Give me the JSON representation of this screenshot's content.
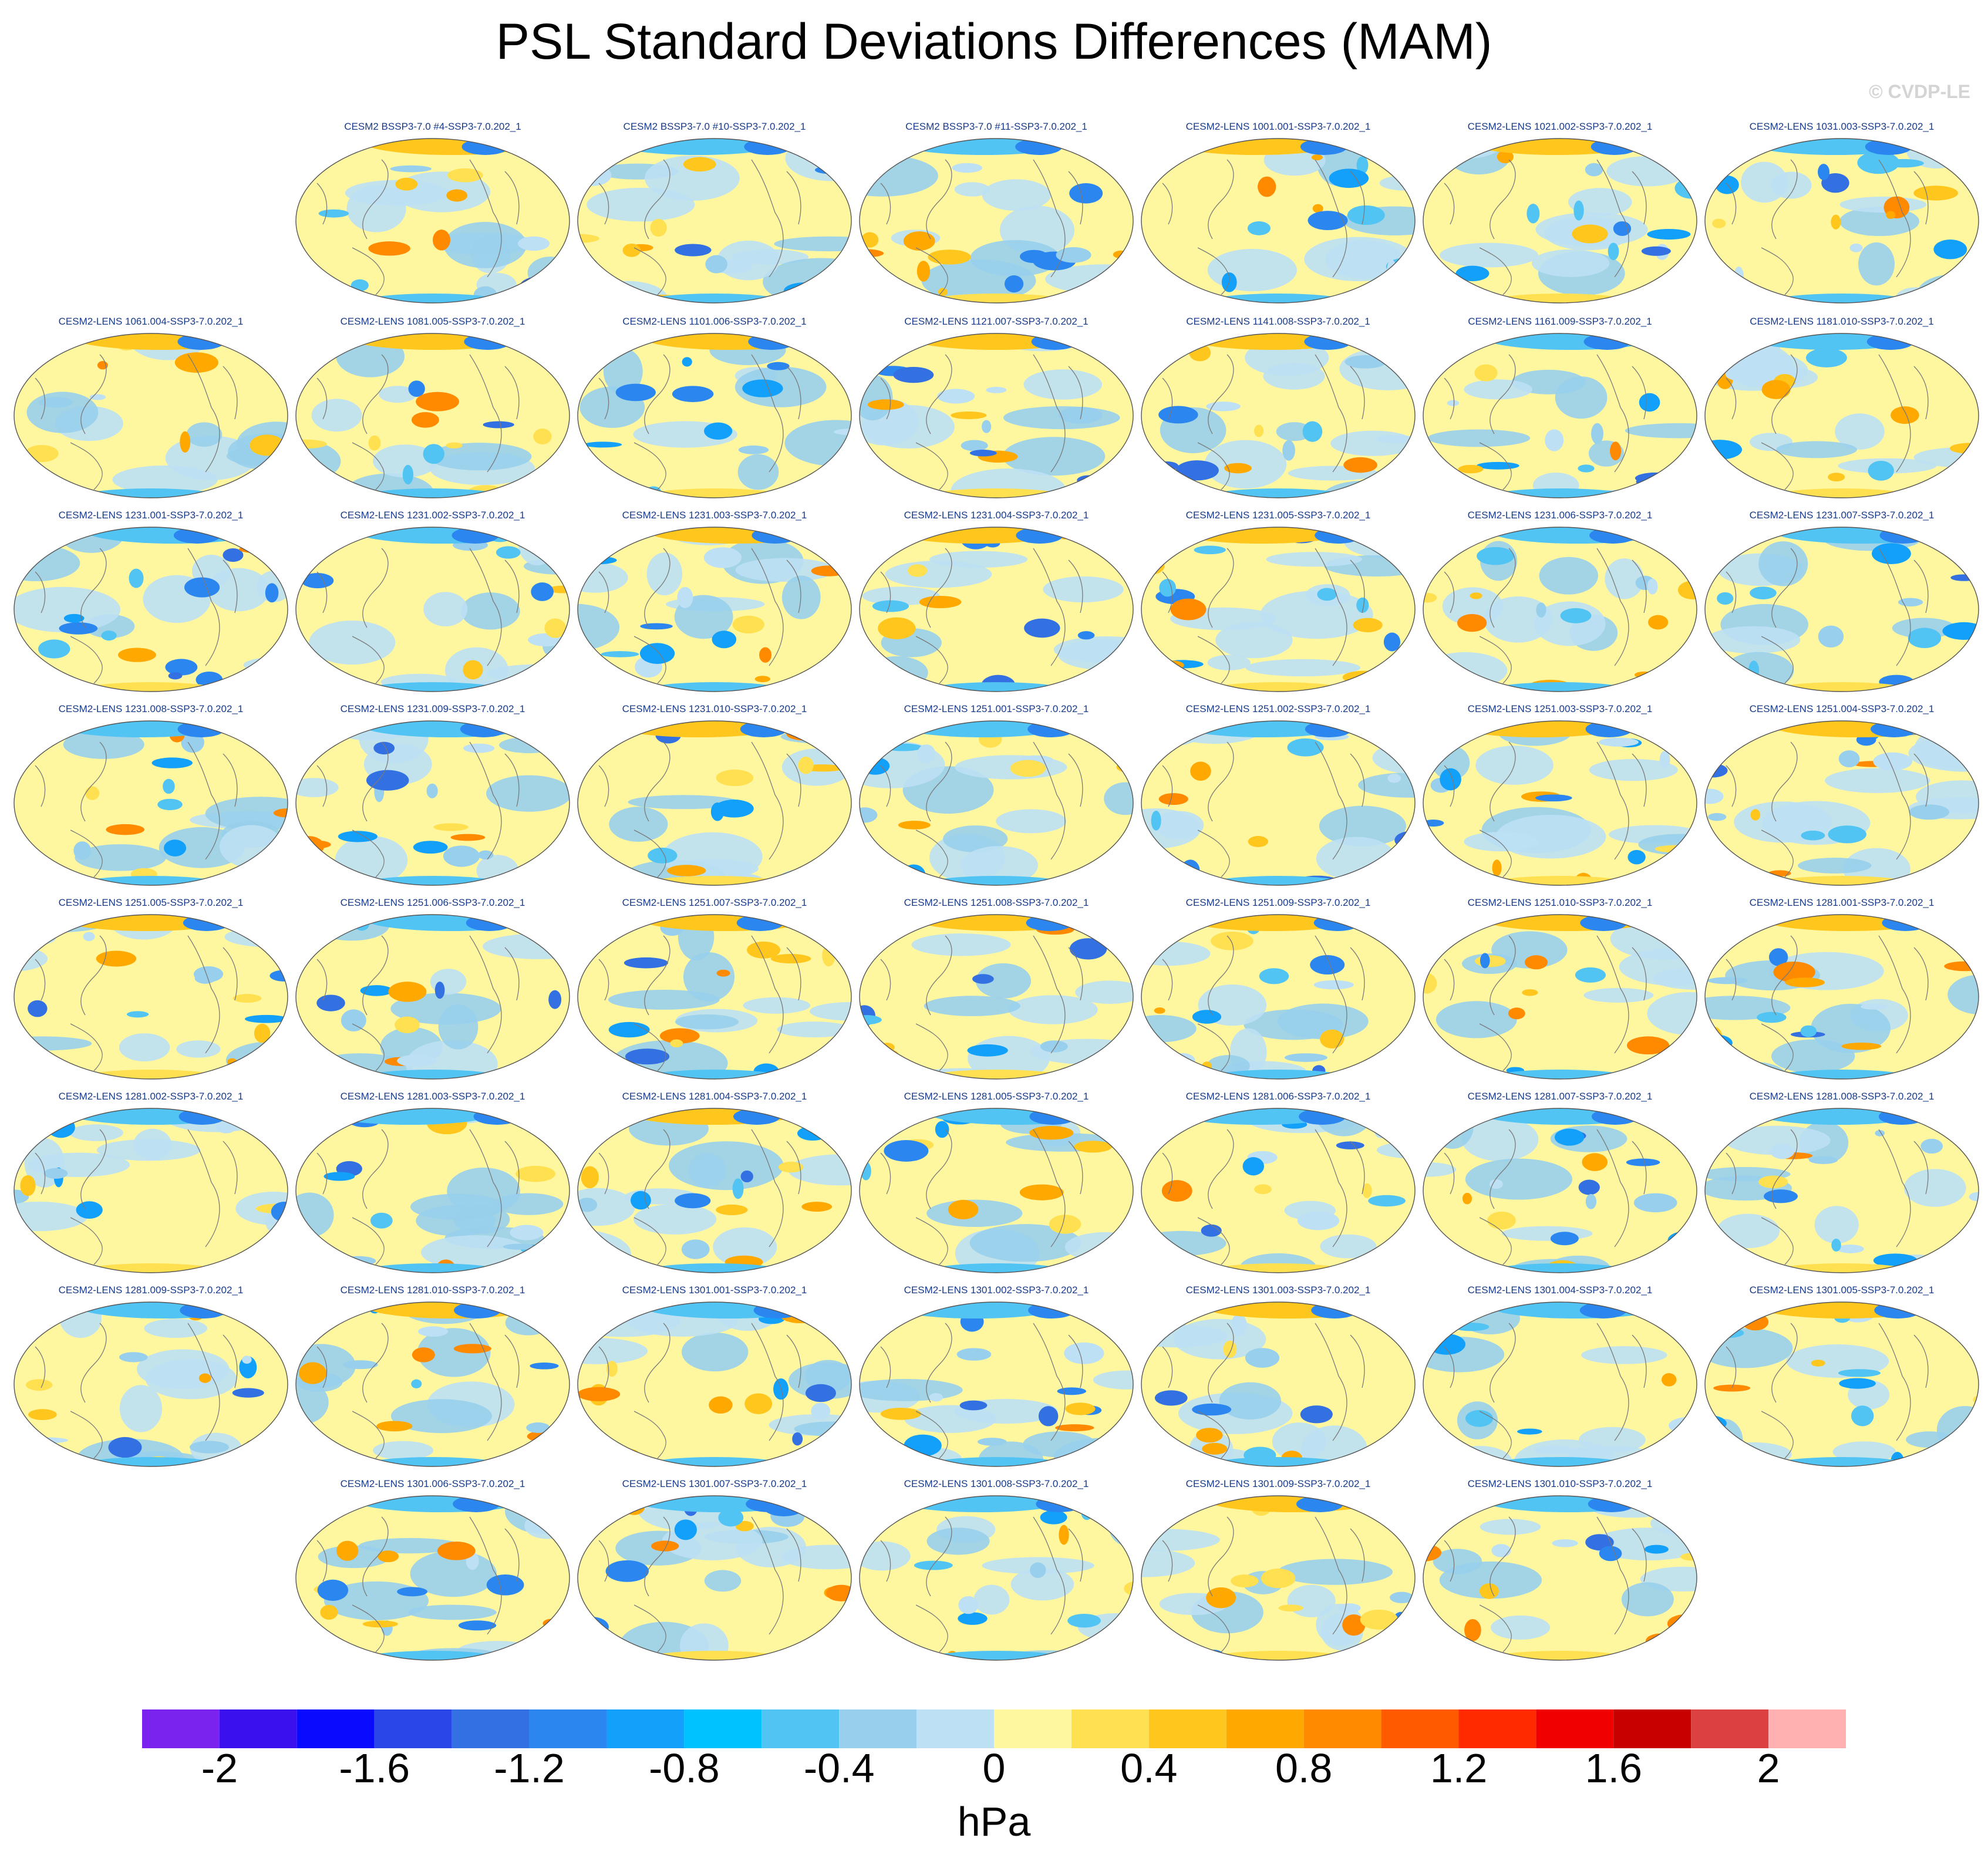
{
  "title": "PSL Standard Deviations Differences (MAM)",
  "credit": "© CVDP-LE",
  "units": "hPa",
  "colorbar": {
    "colors": [
      "#7a22ee",
      "#3a10ee",
      "#0a0aff",
      "#2a46e8",
      "#3370e2",
      "#2b86f0",
      "#12a0fa",
      "#00c2ff",
      "#52c4f4",
      "#98cfec",
      "#bde0f4",
      "#fff7a0",
      "#ffe050",
      "#ffc61e",
      "#ffa800",
      "#ff8a00",
      "#ff5a00",
      "#ff2a00",
      "#f00000",
      "#c80000",
      "#dc4040",
      "#ffb0b0"
    ],
    "tick_labels": [
      "-2",
      "-1.6",
      "-1.2",
      "-0.8",
      "-0.4",
      "0",
      "0.4",
      "0.8",
      "1.2",
      "1.6",
      "2"
    ]
  },
  "rows": [
    {
      "start_col": 1,
      "panels": [
        "CESM2 BSSP3-7.0 #4-SSP3-7.0.202_1",
        "CESM2 BSSP3-7.0 #10-SSP3-7.0.202_1",
        "CESM2 BSSP3-7.0 #11-SSP3-7.0.202_1",
        "CESM2-LENS 1001.001-SSP3-7.0.202_1",
        "CESM2-LENS 1021.002-SSP3-7.0.202_1",
        "CESM2-LENS 1031.003-SSP3-7.0.202_1"
      ]
    },
    {
      "start_col": 0,
      "panels": [
        "CESM2-LENS 1061.004-SSP3-7.0.202_1",
        "CESM2-LENS 1081.005-SSP3-7.0.202_1",
        "CESM2-LENS 1101.006-SSP3-7.0.202_1",
        "CESM2-LENS 1121.007-SSP3-7.0.202_1",
        "CESM2-LENS 1141.008-SSP3-7.0.202_1",
        "CESM2-LENS 1161.009-SSP3-7.0.202_1",
        "CESM2-LENS 1181.010-SSP3-7.0.202_1"
      ]
    },
    {
      "start_col": 0,
      "panels": [
        "CESM2-LENS 1231.001-SSP3-7.0.202_1",
        "CESM2-LENS 1231.002-SSP3-7.0.202_1",
        "CESM2-LENS 1231.003-SSP3-7.0.202_1",
        "CESM2-LENS 1231.004-SSP3-7.0.202_1",
        "CESM2-LENS 1231.005-SSP3-7.0.202_1",
        "CESM2-LENS 1231.006-SSP3-7.0.202_1",
        "CESM2-LENS 1231.007-SSP3-7.0.202_1"
      ]
    },
    {
      "start_col": 0,
      "panels": [
        "CESM2-LENS 1231.008-SSP3-7.0.202_1",
        "CESM2-LENS 1231.009-SSP3-7.0.202_1",
        "CESM2-LENS 1231.010-SSP3-7.0.202_1",
        "CESM2-LENS 1251.001-SSP3-7.0.202_1",
        "CESM2-LENS 1251.002-SSP3-7.0.202_1",
        "CESM2-LENS 1251.003-SSP3-7.0.202_1",
        "CESM2-LENS 1251.004-SSP3-7.0.202_1"
      ]
    },
    {
      "start_col": 0,
      "panels": [
        "CESM2-LENS 1251.005-SSP3-7.0.202_1",
        "CESM2-LENS 1251.006-SSP3-7.0.202_1",
        "CESM2-LENS 1251.007-SSP3-7.0.202_1",
        "CESM2-LENS 1251.008-SSP3-7.0.202_1",
        "CESM2-LENS 1251.009-SSP3-7.0.202_1",
        "CESM2-LENS 1251.010-SSP3-7.0.202_1",
        "CESM2-LENS 1281.001-SSP3-7.0.202_1"
      ]
    },
    {
      "start_col": 0,
      "panels": [
        "CESM2-LENS 1281.002-SSP3-7.0.202_1",
        "CESM2-LENS 1281.003-SSP3-7.0.202_1",
        "CESM2-LENS 1281.004-SSP3-7.0.202_1",
        "CESM2-LENS 1281.005-SSP3-7.0.202_1",
        "CESM2-LENS 1281.006-SSP3-7.0.202_1",
        "CESM2-LENS 1281.007-SSP3-7.0.202_1",
        "CESM2-LENS 1281.008-SSP3-7.0.202_1"
      ]
    },
    {
      "start_col": 0,
      "panels": [
        "CESM2-LENS 1281.009-SSP3-7.0.202_1",
        "CESM2-LENS 1281.010-SSP3-7.0.202_1",
        "CESM2-LENS 1301.001-SSP3-7.0.202_1",
        "CESM2-LENS 1301.002-SSP3-7.0.202_1",
        "CESM2-LENS 1301.003-SSP3-7.0.202_1",
        "CESM2-LENS 1301.004-SSP3-7.0.202_1",
        "CESM2-LENS 1301.005-SSP3-7.0.202_1"
      ]
    },
    {
      "start_col": 1,
      "panels": [
        "CESM2-LENS 1301.006-SSP3-7.0.202_1",
        "CESM2-LENS 1301.007-SSP3-7.0.202_1",
        "CESM2-LENS 1301.008-SSP3-7.0.202_1",
        "CESM2-LENS 1301.009-SSP3-7.0.202_1",
        "CESM2-LENS 1301.010-SSP3-7.0.202_1"
      ]
    }
  ]
}
